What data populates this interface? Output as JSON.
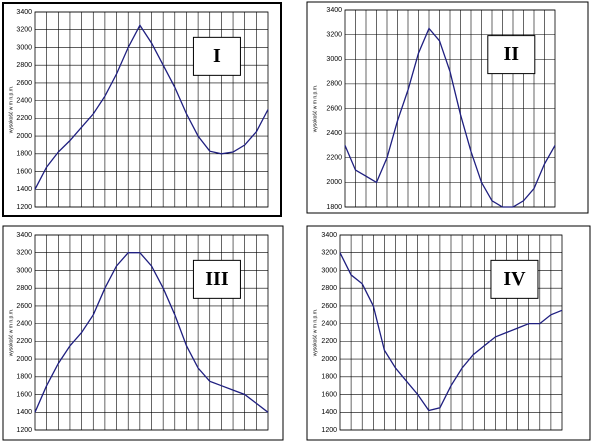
{
  "chart_data": [
    {
      "type": "line",
      "title": "I",
      "ylabel": "wysokość w m n.p.m.",
      "color": "#1f1f80",
      "grid": true,
      "ylim": [
        1200,
        3400
      ],
      "yticks": [
        1200,
        1400,
        1600,
        1800,
        2000,
        2200,
        2400,
        2600,
        2800,
        3000,
        3200,
        3400
      ],
      "values": [
        1400,
        1650,
        1820,
        1950,
        2100,
        2250,
        2450,
        2700,
        3000,
        3250,
        3050,
        2800,
        2550,
        2250,
        2000,
        1830,
        1800,
        1820,
        1900,
        2050,
        2300
      ]
    },
    {
      "type": "line",
      "title": "II",
      "ylabel": "wysokość w m n.p.m.",
      "color": "#1f1f80",
      "grid": true,
      "ylim": [
        1800,
        3400
      ],
      "yticks": [
        1800,
        2000,
        2200,
        2400,
        2600,
        2800,
        3000,
        3200,
        3400
      ],
      "values": [
        2300,
        2100,
        2050,
        2000,
        2200,
        2500,
        2750,
        3050,
        3250,
        3150,
        2900,
        2550,
        2250,
        2000,
        1850,
        1800,
        1800,
        1850,
        1950,
        2150,
        2300
      ]
    },
    {
      "type": "line",
      "title": "III",
      "ylabel": "wysokość w m n.p.m.",
      "color": "#1f1f80",
      "grid": true,
      "ylim": [
        1200,
        3400
      ],
      "yticks": [
        1200,
        1400,
        1600,
        1800,
        2000,
        2200,
        2400,
        2600,
        2800,
        3000,
        3200,
        3400
      ],
      "values": [
        1400,
        1700,
        1950,
        2150,
        2300,
        2500,
        2800,
        3050,
        3200,
        3200,
        3050,
        2800,
        2500,
        2150,
        1900,
        1750,
        1700,
        1650,
        1600,
        1500,
        1400
      ]
    },
    {
      "type": "line",
      "title": "IV",
      "ylabel": "wysokość w m n.p.m.",
      "color": "#1f1f80",
      "grid": true,
      "ylim": [
        1200,
        3400
      ],
      "yticks": [
        1200,
        1400,
        1600,
        1800,
        2000,
        2200,
        2400,
        2600,
        2800,
        3000,
        3200,
        3400
      ],
      "values": [
        3200,
        2950,
        2850,
        2600,
        2100,
        1900,
        1750,
        1600,
        1420,
        1450,
        1700,
        1900,
        2050,
        2150,
        2250,
        2300,
        2350,
        2400,
        2400,
        2500,
        2550
      ]
    }
  ]
}
